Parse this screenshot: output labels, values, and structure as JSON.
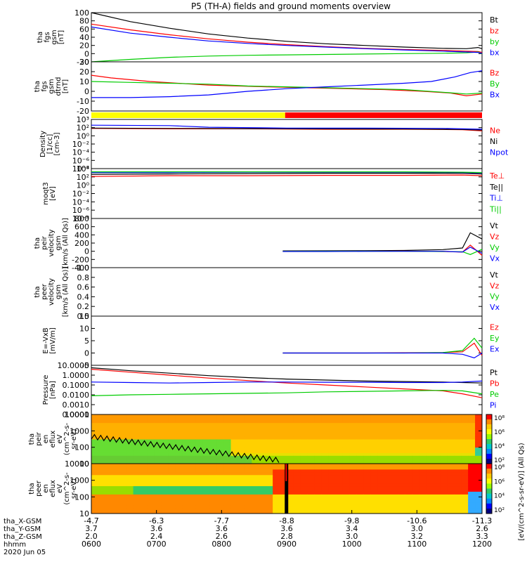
{
  "title": "P5 (TH-A) fields and ground moments overview",
  "date": "2020 Jun 05",
  "colors": {
    "black": "#000000",
    "red": "#ff0000",
    "green": "#00cc00",
    "blue": "#0000ff"
  },
  "chart_data": [
    {
      "type": "line",
      "name": "fgs-gsm",
      "ylabel_lines": [
        "tha",
        "fgs",
        "gsm",
        "[nT]"
      ],
      "ylim": [
        -20,
        100
      ],
      "yticks": [
        "100",
        "80",
        "60",
        "40",
        "20",
        "0",
        "-20"
      ],
      "legend": [
        "Bt",
        "bz",
        "by",
        "bx"
      ],
      "series": [
        {
          "name": "Bt",
          "color": "#000000",
          "x": [
            0,
            0.1,
            0.2,
            0.3,
            0.4,
            0.5,
            0.6,
            0.7,
            0.8,
            0.9,
            0.96,
            0.99,
            1
          ],
          "values": [
            100,
            78,
            62,
            48,
            38,
            30,
            24,
            20,
            16,
            13,
            12,
            15,
            12
          ]
        },
        {
          "name": "bz",
          "color": "#ff0000",
          "x": [
            0,
            0.1,
            0.2,
            0.3,
            0.4,
            0.5,
            0.6,
            0.7,
            0.8,
            0.9,
            0.96,
            0.99,
            1
          ],
          "values": [
            72,
            58,
            46,
            36,
            28,
            22,
            17,
            13,
            10,
            8,
            6,
            5,
            3
          ]
        },
        {
          "name": "by",
          "color": "#00cc00",
          "x": [
            0,
            0.1,
            0.2,
            0.3,
            0.4,
            0.5,
            0.6,
            0.7,
            0.8,
            0.9,
            0.96,
            0.99,
            1
          ],
          "values": [
            -22,
            -14,
            -9,
            -6,
            -4,
            -3,
            -2,
            -1,
            0,
            1,
            2,
            4,
            0
          ]
        },
        {
          "name": "bx",
          "color": "#0000ff",
          "x": [
            0,
            0.1,
            0.2,
            0.3,
            0.4,
            0.5,
            0.6,
            0.7,
            0.8,
            0.9,
            0.96,
            0.99,
            1
          ],
          "values": [
            65,
            50,
            40,
            31,
            25,
            20,
            16,
            12,
            9,
            6,
            4,
            3,
            1
          ]
        }
      ]
    },
    {
      "type": "line",
      "name": "fgs-gsm-detrend",
      "ylabel_lines": [
        "tha",
        "fgs",
        "gsm",
        "dtrnd",
        "[nT]"
      ],
      "ylim": [
        -25,
        30
      ],
      "yticks": [
        "30",
        "20",
        "10",
        "0",
        "-10",
        "-20"
      ],
      "legend": [
        "Bz",
        "By",
        "Bx"
      ],
      "series": [
        {
          "name": "Bz",
          "color": "#ff0000",
          "x": [
            0,
            0.05,
            0.15,
            0.3,
            0.45,
            0.55,
            0.65,
            0.75,
            0.85,
            0.92,
            0.96,
            1
          ],
          "values": [
            15,
            12,
            8,
            4,
            2,
            1,
            0,
            -1,
            -3,
            -5,
            -8,
            -6
          ]
        },
        {
          "name": "By",
          "color": "#00cc00",
          "x": [
            0,
            0.1,
            0.2,
            0.3,
            0.4,
            0.5,
            0.6,
            0.7,
            0.8,
            0.9,
            0.96,
            1
          ],
          "values": [
            8,
            7,
            6,
            5,
            3,
            2,
            1,
            0,
            -1,
            -4,
            -6,
            -5
          ]
        },
        {
          "name": "Bx",
          "color": "#0000ff",
          "x": [
            0,
            0.1,
            0.2,
            0.3,
            0.4,
            0.5,
            0.6,
            0.7,
            0.8,
            0.87,
            0.93,
            0.97,
            1
          ],
          "values": [
            -10,
            -10,
            -9,
            -7,
            -3,
            0,
            2,
            4,
            6,
            8,
            13,
            18,
            20
          ]
        }
      ]
    },
    {
      "type": "bar",
      "name": "mode-bar",
      "segments": [
        {
          "from": 0,
          "to": 0.496,
          "color": "#ffff00"
        },
        {
          "from": 0.496,
          "to": 1,
          "color": "#ff0000"
        }
      ]
    },
    {
      "type": "line",
      "name": "density",
      "ylabel_lines": [
        "Density",
        "[1/cc]",
        "[cm-3]"
      ],
      "yscale": "log",
      "ylim": [
        -9,
        3
      ],
      "yticks": [
        "10³",
        "10²",
        "10⁰",
        "10⁻²",
        "10⁻⁴",
        "10⁻⁶",
        "10⁻⁸"
      ],
      "legend": [
        "Ne",
        "Ni",
        "Npot"
      ],
      "series": [
        {
          "name": "Ne",
          "color": "#ff0000",
          "x": [
            0,
            0.2,
            0.4,
            0.6,
            0.8,
            0.95,
            1
          ],
          "values": [
            0.8,
            0.7,
            0.7,
            0.6,
            0.6,
            0.5,
            0.2
          ]
        },
        {
          "name": "Ni",
          "color": "#000000",
          "x": [
            0,
            0.2,
            0.4,
            0.6,
            0.8,
            0.95,
            1
          ],
          "values": [
            0.9,
            0.8,
            0.75,
            0.7,
            0.65,
            0.55,
            0.4
          ]
        },
        {
          "name": "Npot",
          "color": "#0000ff",
          "x": [
            0,
            0.2,
            0.3,
            0.5,
            0.7,
            0.9,
            1
          ],
          "values": [
            1.6,
            1.5,
            1.1,
            0.9,
            0.9,
            0.8,
            0.6
          ]
        }
      ]
    },
    {
      "type": "line",
      "name": "temperature",
      "ylabel_lines": [
        "moqt3",
        "[eV]"
      ],
      "yscale": "log",
      "ylim": [
        -9,
        5
      ],
      "yticks": [
        "10⁴",
        "10²",
        "10⁰",
        "10⁻²",
        "10⁻⁴",
        "10⁻⁶",
        "10⁻⁸"
      ],
      "legend": [
        "Te⊥",
        "Te||",
        "Ti⊥",
        "Ti||"
      ],
      "series": [
        {
          "name": "Te⊥",
          "color": "#ff0000",
          "x": [
            0,
            0.2,
            0.4,
            0.6,
            0.8,
            0.95,
            1
          ],
          "values": [
            2.8,
            3.0,
            3.0,
            3.1,
            3.1,
            3.2,
            3.0
          ]
        },
        {
          "name": "Te||",
          "color": "#000000",
          "x": [
            0,
            0.2,
            0.4,
            0.6,
            0.8,
            0.95,
            1
          ],
          "values": [
            3.4,
            3.5,
            3.6,
            3.7,
            3.7,
            3.7,
            3.5
          ]
        },
        {
          "name": "Ti⊥",
          "color": "#0000ff",
          "x": [
            0,
            0.2,
            0.4,
            0.6,
            0.8,
            0.95,
            1
          ],
          "values": [
            3.9,
            3.9,
            4.0,
            4.0,
            4.0,
            3.9,
            3.8
          ]
        },
        {
          "name": "Ti||",
          "color": "#00cc00",
          "x": [
            0,
            0.2,
            0.4,
            0.6,
            0.8,
            0.95,
            1
          ],
          "values": [
            4.1,
            4.1,
            4.1,
            4.1,
            4.1,
            4.0,
            3.9
          ]
        }
      ]
    },
    {
      "type": "line",
      "name": "peir-velocity",
      "ylabel_lines": [
        "tha",
        "peir",
        "velocity",
        "gsm",
        "[km/s (All Qs)]"
      ],
      "ylim": [
        -400,
        800
      ],
      "yticks": [
        "800",
        "600",
        "400",
        "200",
        "0",
        "-200",
        "-400"
      ],
      "legend": [
        "Vt",
        "Vz",
        "Vy",
        "Vx"
      ],
      "series": [
        {
          "name": "Vt",
          "color": "#000000",
          "x": [
            0.49,
            0.6,
            0.7,
            0.8,
            0.9,
            0.95,
            0.97,
            1
          ],
          "values": [
            10,
            12,
            15,
            20,
            40,
            80,
            450,
            300
          ]
        },
        {
          "name": "Vz",
          "color": "#ff0000",
          "x": [
            0.49,
            0.6,
            0.7,
            0.8,
            0.9,
            0.95,
            0.97,
            1
          ],
          "values": [
            0,
            0,
            2,
            3,
            -5,
            -20,
            150,
            -100
          ]
        },
        {
          "name": "Vy",
          "color": "#00cc00",
          "x": [
            0.49,
            0.6,
            0.7,
            0.8,
            0.9,
            0.95,
            0.97,
            1
          ],
          "values": [
            0,
            1,
            1,
            0,
            -5,
            -10,
            -80,
            50
          ]
        },
        {
          "name": "Vx",
          "color": "#0000ff",
          "x": [
            0.49,
            0.6,
            0.7,
            0.8,
            0.9,
            0.95,
            0.97,
            1
          ],
          "values": [
            -5,
            -5,
            -3,
            0,
            0,
            -20,
            100,
            -50
          ]
        }
      ]
    },
    {
      "type": "line",
      "name": "peer-velocity",
      "ylabel_lines": [
        "tha",
        "peer",
        "velocity",
        "gsm",
        "[km/s (All Qs)]"
      ],
      "ylim": [
        0,
        1
      ],
      "yticks": [
        "1.0",
        "0.8",
        "0.6",
        "0.4",
        "0.2",
        "0.0"
      ],
      "legend": [
        "Vt",
        "Vz",
        "Vy",
        "Vx"
      ],
      "series": []
    },
    {
      "type": "line",
      "name": "e-field",
      "ylabel_lines": [
        "E=-VxB",
        "[mV/m]"
      ],
      "ylim": [
        -5,
        15
      ],
      "yticks": [
        "15",
        "10",
        "5",
        "0",
        "-5"
      ],
      "legend": [
        "Ez",
        "Ey",
        "Ex"
      ],
      "series": [
        {
          "name": "Ez",
          "color": "#ff0000",
          "x": [
            0.49,
            0.6,
            0.7,
            0.8,
            0.9,
            0.95,
            0.98,
            1
          ],
          "values": [
            0,
            0,
            0,
            0.1,
            0.2,
            0.5,
            4,
            -1
          ]
        },
        {
          "name": "Ey",
          "color": "#00cc00",
          "x": [
            0.49,
            0.6,
            0.7,
            0.8,
            0.9,
            0.95,
            0.98,
            1
          ],
          "values": [
            0,
            0,
            0,
            0,
            0.2,
            1,
            6,
            2
          ]
        },
        {
          "name": "Ex",
          "color": "#0000ff",
          "x": [
            0.49,
            0.6,
            0.7,
            0.8,
            0.9,
            0.95,
            0.98,
            1
          ],
          "values": [
            0,
            0,
            0,
            0,
            0,
            -0.5,
            -2,
            0
          ]
        }
      ]
    },
    {
      "type": "line",
      "name": "pressure",
      "ylabel_lines": [
        "Pressure",
        "[nPa]"
      ],
      "yscale": "log",
      "ylim": [
        -4,
        1
      ],
      "yticks": [
        "10.0000",
        "1.0000",
        "0.1000",
        "0.0100",
        "0.0010",
        "0.0001"
      ],
      "legend": [
        "Pt",
        "Pb",
        "Pe",
        "Pi"
      ],
      "series": [
        {
          "name": "Pt",
          "color": "#000000",
          "x": [
            0,
            0.1,
            0.2,
            0.3,
            0.4,
            0.5,
            0.6,
            0.7,
            0.8,
            0.9,
            0.95,
            1
          ],
          "values": [
            0.75,
            0.45,
            0.2,
            -0.05,
            -0.25,
            -0.4,
            -0.5,
            -0.6,
            -0.65,
            -0.7,
            -0.75,
            -0.8
          ]
        },
        {
          "name": "Pb",
          "color": "#ff0000",
          "x": [
            0,
            0.1,
            0.2,
            0.3,
            0.4,
            0.5,
            0.6,
            0.7,
            0.8,
            0.9,
            0.95,
            1
          ],
          "values": [
            0.6,
            0.3,
            0.0,
            -0.3,
            -0.55,
            -0.8,
            -1.0,
            -1.2,
            -1.4,
            -1.6,
            -1.9,
            -2.3
          ]
        },
        {
          "name": "Pe",
          "color": "#00cc00",
          "x": [
            0,
            0.1,
            0.2,
            0.3,
            0.4,
            0.5,
            0.6,
            0.7,
            0.8,
            0.9,
            0.95,
            1
          ],
          "values": [
            -2.1,
            -2.0,
            -1.95,
            -1.9,
            -1.85,
            -1.8,
            -1.7,
            -1.65,
            -1.6,
            -1.55,
            -1.6,
            -1.9
          ]
        },
        {
          "name": "Pi",
          "color": "#0000ff",
          "x": [
            0,
            0.1,
            0.2,
            0.3,
            0.4,
            0.5,
            0.6,
            0.7,
            0.8,
            0.9,
            0.95,
            1
          ],
          "values": [
            -0.7,
            -0.75,
            -0.8,
            -0.75,
            -0.7,
            -0.7,
            -0.72,
            -0.72,
            -0.75,
            -0.75,
            -0.7,
            -0.6
          ]
        }
      ]
    },
    {
      "type": "heatmap",
      "name": "peir-en-eflux",
      "ylabel_lines": [
        "tha",
        "peir",
        "en",
        "eflux",
        "eV",
        "(cm^2-s-",
        "sr-eV)"
      ],
      "yscale": "log",
      "ylim": [
        5,
        30000
      ],
      "yticks": [
        "10000",
        "1000",
        "100",
        "10"
      ],
      "colorbar_label": "[eV/(cm^2-s-sr-eV)] (All Qs)",
      "colorbar_ticks": [
        "10⁸",
        "10⁶",
        "10⁴",
        "10²"
      ]
    },
    {
      "type": "heatmap",
      "name": "peer-en-eflux",
      "ylabel_lines": [
        "tha",
        "peer",
        "en",
        "eflux",
        "eV",
        "(cm^2-s-",
        "sr-eV)"
      ],
      "yscale": "log",
      "ylim": [
        5,
        30000
      ],
      "yticks": [
        "10000",
        "1000",
        "100",
        "10"
      ],
      "colorbar_label": "[eV/(cm^2-s-sr-eV)] (All Qs)",
      "colorbar_ticks": [
        "10⁸",
        "10⁶",
        "10⁴",
        "10²"
      ]
    }
  ],
  "xaxis": {
    "row_labels": [
      "tha_X-GSM",
      "tha_Y-GSM",
      "tha_Z-GSM",
      "hhmm",
      "2020 Jun 05"
    ],
    "ticks": [
      {
        "x": 0,
        "vals": [
          "-4.7",
          "3.7",
          "2.0",
          "0600"
        ]
      },
      {
        "x": 0.1667,
        "vals": [
          "-6.3",
          "3.6",
          "2.4",
          "0700"
        ]
      },
      {
        "x": 0.3333,
        "vals": [
          "-7.7",
          "3.6",
          "2.6",
          "0800"
        ]
      },
      {
        "x": 0.5,
        "vals": [
          "-8.8",
          "3.6",
          "2.8",
          "0900"
        ]
      },
      {
        "x": 0.6667,
        "vals": [
          "-9.8",
          "3.4",
          "3.0",
          "1000"
        ]
      },
      {
        "x": 0.8333,
        "vals": [
          "-10.6",
          "3.0",
          "3.2",
          "1100"
        ]
      },
      {
        "x": 1,
        "vals": [
          "-11.3",
          "2.6",
          "3.3",
          "1200"
        ]
      }
    ]
  }
}
